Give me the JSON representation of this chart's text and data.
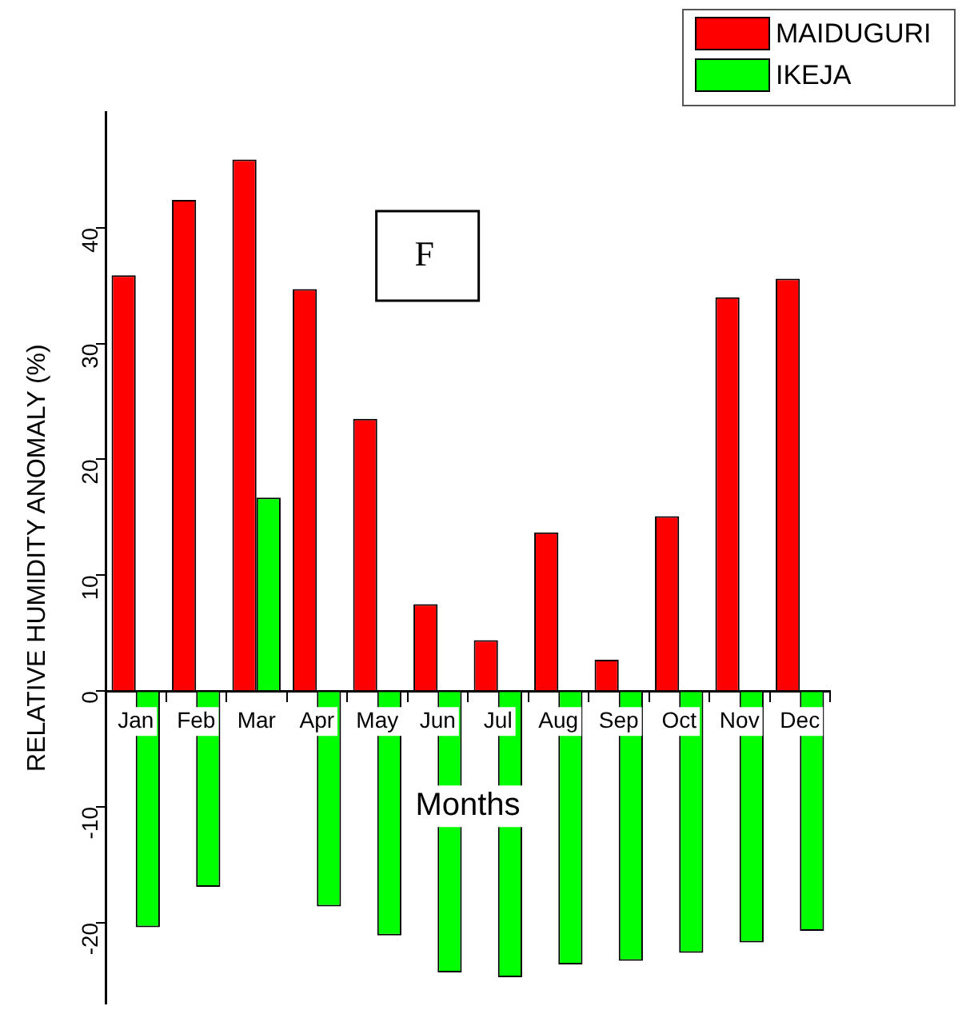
{
  "chart_data": {
    "type": "bar",
    "xlabel": "Months",
    "ylabel": "RELATIVE HUMIDITY ANOMALY (%)",
    "categories": [
      "Jan",
      "Feb",
      "Mar",
      "Apr",
      "May",
      "Jun",
      "Jul",
      "Aug",
      "Sep",
      "Oct",
      "Nov",
      "Dec"
    ],
    "series": [
      {
        "name": "MAIDUGURI",
        "color": "#ff0000",
        "values": [
          35.9,
          42.4,
          45.9,
          34.7,
          23.5,
          7.5,
          4.4,
          13.7,
          2.7,
          15.1,
          34.0,
          35.6
        ]
      },
      {
        "name": "IKEJA",
        "color": "#00ff00",
        "values": [
          -20.4,
          -16.9,
          16.7,
          -18.6,
          -21.1,
          -24.3,
          -24.7,
          -23.6,
          -23.3,
          -22.6,
          -21.7,
          -20.7
        ]
      }
    ],
    "ylim": [
      -27,
      50
    ],
    "yticks": [
      -20,
      -10,
      0,
      10,
      20,
      30,
      40
    ],
    "grid": false,
    "legend": "top right",
    "annotations": [
      "F"
    ]
  }
}
